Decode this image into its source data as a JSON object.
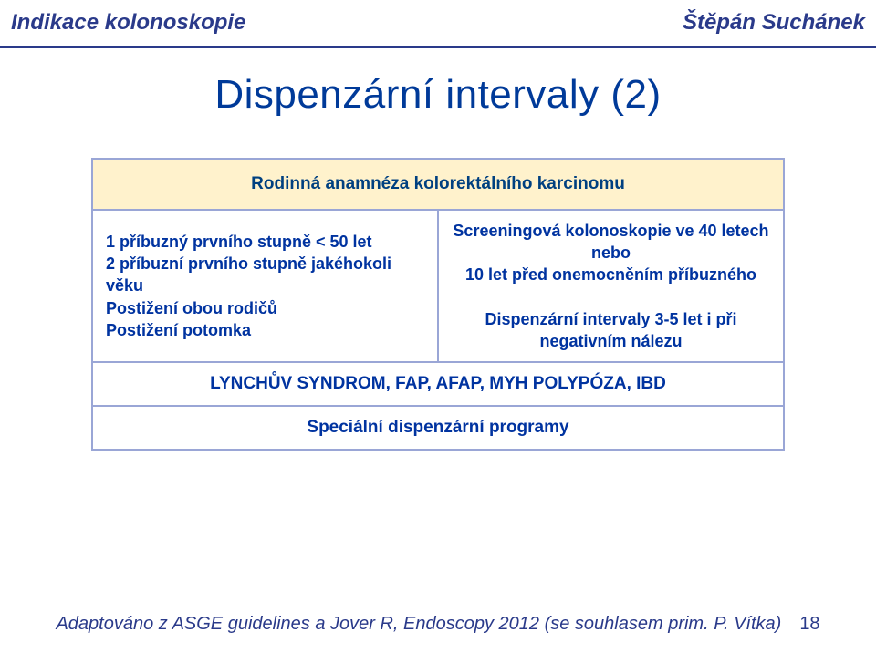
{
  "colors": {
    "header_text_left": "#2a3a8a",
    "header_text_right": "#2a3a8a",
    "divider": "#2a3a8a",
    "title": "#003a99",
    "table_border": "#9aa6d6",
    "table_header_bg": "#fff2cc",
    "table_header_text": "#004080",
    "cell_text": "#0033a0",
    "footer_text": "#2a3a8a",
    "page_num": "#2a3a8a",
    "slide_bg": "#ffffff"
  },
  "header": {
    "left": "Indikace kolonoskopie",
    "right": "Štěpán Suchánek"
  },
  "title": "Dispenzární intervaly (2)",
  "table": {
    "header_row": "Rodinná anamnéza kolorektálního karcinomu",
    "row1_left_lines": [
      "1 příbuzný prvního stupně < 50 let",
      "2 příbuzní prvního stupně jakéhokoli věku",
      "Postižení obou rodičů",
      "Postižení potomka"
    ],
    "row1_right_lines": [
      "Screeningová kolonoskopie ve 40 letech",
      "nebo",
      "10 let před onemocněním příbuzného",
      "",
      "Dispenzární intervaly 3-5 let i při",
      "negativním nálezu"
    ],
    "row2": "LYNCHŮV SYNDROM, FAP, AFAP, MYH POLYPÓZA, IBD",
    "row3": "Speciální dispenzární programy"
  },
  "footer": {
    "text": "Adaptováno z ASGE guidelines a Jover R, Endoscopy 2012 (se souhlasem prim. P. Vítka)",
    "page": "18"
  }
}
